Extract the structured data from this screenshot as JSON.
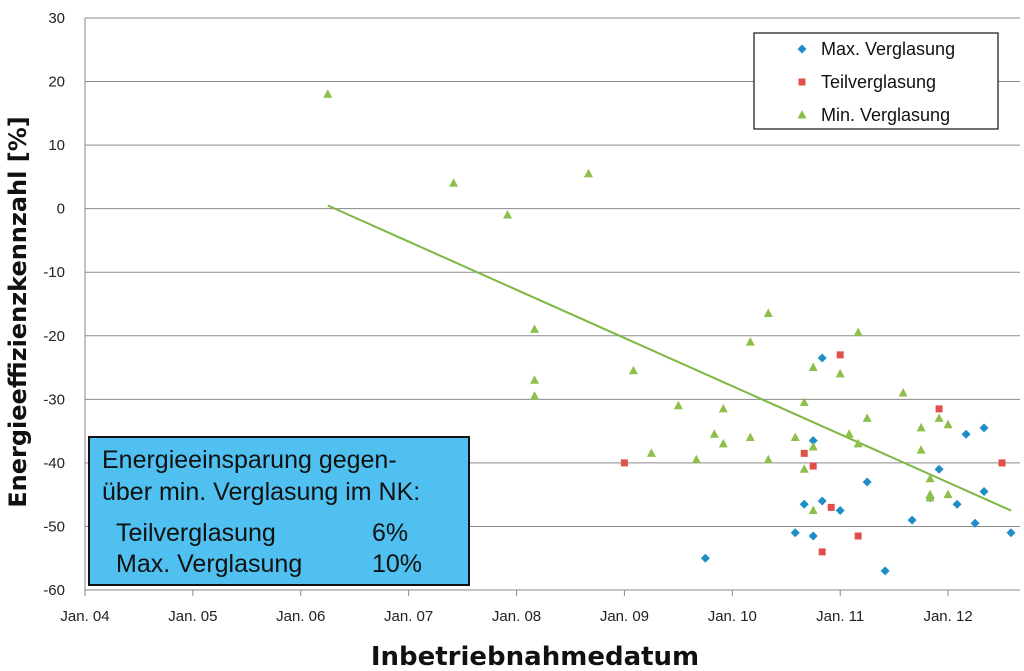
{
  "chart_data": {
    "type": "scatter",
    "xlabel": "Inbetriebnahmedatum",
    "ylabel": "Energieeffizienzkennzahl  [%]",
    "xlim": [
      "2004-01",
      "2012-09"
    ],
    "ylim": [
      -60,
      30
    ],
    "x_ticks": [
      "Jan. 04",
      "Jan. 05",
      "Jan. 06",
      "Jan. 07",
      "Jan. 08",
      "Jan. 09",
      "Jan. 10",
      "Jan. 11",
      "Jan. 12"
    ],
    "y_ticks": [
      30,
      20,
      10,
      0,
      -10,
      -20,
      -30,
      -40,
      -50,
      -60
    ],
    "grid": "horizontal",
    "legend_position": "top-right",
    "series": [
      {
        "name": "Max. Verglasung",
        "marker": "diamond",
        "color": "#1f8ec8",
        "points": [
          [
            "2009-10",
            -55
          ],
          [
            "2010-08",
            -51
          ],
          [
            "2010-09",
            -46.5
          ],
          [
            "2010-10",
            -36.5
          ],
          [
            "2010-10",
            -51.5
          ],
          [
            "2010-11",
            -23.5
          ],
          [
            "2010-11",
            -46
          ],
          [
            "2011-01",
            -47.5
          ],
          [
            "2011-04",
            -43
          ],
          [
            "2011-06",
            -57
          ],
          [
            "2011-09",
            -49
          ],
          [
            "2011-11",
            -45.5
          ],
          [
            "2011-12",
            -41
          ],
          [
            "2012-02",
            -46.5
          ],
          [
            "2012-03",
            -35.5
          ],
          [
            "2012-04",
            -49.5
          ],
          [
            "2012-05",
            -44.5
          ],
          [
            "2012-05",
            -34.5
          ],
          [
            "2012-08",
            -51
          ]
        ]
      },
      {
        "name": "Teilverglasung",
        "marker": "square",
        "color": "#e0504a",
        "points": [
          [
            "2009-01",
            -40
          ],
          [
            "2010-09",
            -38.5
          ],
          [
            "2010-10",
            -40.5
          ],
          [
            "2010-11",
            -54
          ],
          [
            "2010-12",
            -47
          ],
          [
            "2011-01",
            -23
          ],
          [
            "2011-03",
            -51.5
          ],
          [
            "2011-12",
            -31.5
          ],
          [
            "2012-07",
            -40
          ]
        ]
      },
      {
        "name": "Min. Verglasung",
        "marker": "triangle",
        "color": "#8dbf4a",
        "points": [
          [
            "2006-04",
            18
          ],
          [
            "2007-06",
            4
          ],
          [
            "2007-12",
            -1
          ],
          [
            "2008-03",
            -19
          ],
          [
            "2008-03",
            -27
          ],
          [
            "2008-03",
            -29.5
          ],
          [
            "2008-09",
            5.5
          ],
          [
            "2009-02",
            -25.5
          ],
          [
            "2009-04",
            -38.5
          ],
          [
            "2009-07",
            -31
          ],
          [
            "2009-09",
            -39.5
          ],
          [
            "2009-11",
            -35.5
          ],
          [
            "2009-12",
            -31.5
          ],
          [
            "2009-12",
            -37
          ],
          [
            "2010-03",
            -21
          ],
          [
            "2010-03",
            -36
          ],
          [
            "2010-05",
            -16.5
          ],
          [
            "2010-05",
            -39.5
          ],
          [
            "2010-08",
            -36
          ],
          [
            "2010-09",
            -30.5
          ],
          [
            "2010-09",
            -41
          ],
          [
            "2010-10",
            -25
          ],
          [
            "2010-10",
            -37.5
          ],
          [
            "2010-10",
            -47.5
          ],
          [
            "2011-01",
            -26
          ],
          [
            "2011-02",
            -35.5
          ],
          [
            "2011-03",
            -19.5
          ],
          [
            "2011-03",
            -37
          ],
          [
            "2011-04",
            -33
          ],
          [
            "2011-08",
            -29
          ],
          [
            "2011-10",
            -38
          ],
          [
            "2011-10",
            -34.5
          ],
          [
            "2011-11",
            -45
          ],
          [
            "2011-11",
            -45.5
          ],
          [
            "2011-12",
            -33
          ],
          [
            "2012-01",
            -34
          ],
          [
            "2012-01",
            -45
          ],
          [
            "2011-11",
            -42.5
          ]
        ]
      }
    ],
    "trendline": {
      "series": "Min. Verglasung",
      "type": "linear",
      "color": "#7db640",
      "points": [
        [
          "2006-04",
          0.5
        ],
        [
          "2012-08",
          -47.5
        ]
      ]
    }
  },
  "infobox": {
    "heading_line1": "Energieeinsparung gegen-",
    "heading_line2": "über min. Verglasung im NK:",
    "rows": [
      {
        "label": "Teilverglasung",
        "value": "6%"
      },
      {
        "label": "Max. Verglasung",
        "value": "10%"
      }
    ],
    "background": "#4fc0ef"
  }
}
